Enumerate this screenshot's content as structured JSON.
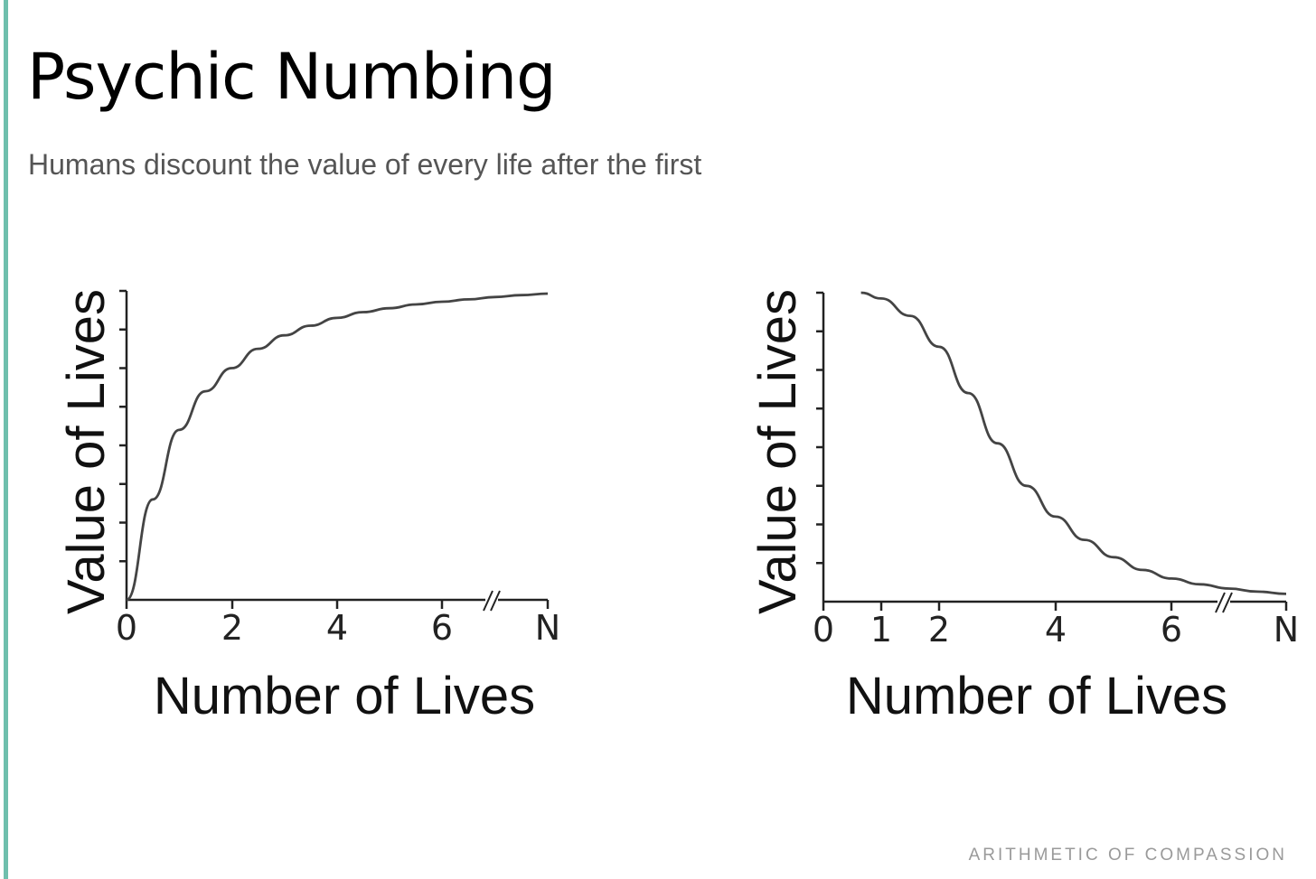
{
  "theme": {
    "accent": "#6fbfad",
    "curve_color": "#444444",
    "axis_color": "#222222"
  },
  "slide": {
    "title": "Psychic Numbing",
    "subtitle": "Humans discount the value of every life after the first",
    "footer": "ARITHMETIC OF COMPASSION"
  },
  "chart_data": [
    {
      "type": "line",
      "title": "",
      "xlabel": "Number of Lives",
      "ylabel": "Value of Lives",
      "x_ticks": [
        "0",
        "2",
        "4",
        "6",
        "N"
      ],
      "y_tick_count": 8,
      "axis_break": "between 6 and N",
      "xlim": [
        0,
        8
      ],
      "ylim": [
        0,
        8
      ],
      "grid": false,
      "series": [
        {
          "x": [
            0,
            0.5,
            1,
            1.5,
            2,
            2.5,
            3,
            3.5,
            4,
            4.5,
            5,
            5.5,
            6,
            6.5,
            7,
            7.5,
            8
          ],
          "y": [
            0,
            2.6,
            4.4,
            5.4,
            6.0,
            6.5,
            6.85,
            7.1,
            7.3,
            7.45,
            7.55,
            7.65,
            7.72,
            7.78,
            7.84,
            7.89,
            7.93
          ]
        }
      ]
    },
    {
      "type": "line",
      "title": "",
      "xlabel": "Number of Lives",
      "ylabel": "Value of Lives",
      "x_ticks": [
        "0",
        "1",
        "2",
        "4",
        "6",
        "N"
      ],
      "y_tick_count": 8,
      "axis_break": "between 6 and N",
      "xlim": [
        0,
        8
      ],
      "ylim": [
        0,
        8
      ],
      "grid": false,
      "series": [
        {
          "x": [
            0.65,
            1,
            1.5,
            2,
            2.5,
            3,
            3.5,
            4,
            4.5,
            5,
            5.5,
            6,
            6.5,
            7,
            7.5,
            8
          ],
          "y": [
            8,
            7.85,
            7.4,
            6.6,
            5.4,
            4.1,
            3.0,
            2.2,
            1.6,
            1.15,
            0.82,
            0.6,
            0.45,
            0.34,
            0.26,
            0.2
          ]
        }
      ]
    }
  ]
}
